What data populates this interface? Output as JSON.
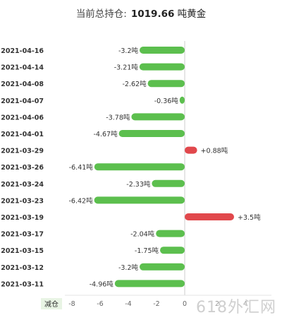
{
  "header": {
    "title_label": "当前总持仓:",
    "title_value": "1019.66",
    "title_unit": "吨黄金"
  },
  "chart_data": {
    "type": "bar",
    "orientation": "horizontal",
    "categories": [
      "2021-04-16",
      "2021-04-14",
      "2021-04-08",
      "2021-04-07",
      "2021-04-06",
      "2021-04-01",
      "2021-03-29",
      "2021-03-26",
      "2021-03-24",
      "2021-03-23",
      "2021-03-19",
      "2021-03-17",
      "2021-03-15",
      "2021-03-12",
      "2021-03-11"
    ],
    "values": [
      -3.2,
      -3.21,
      -2.62,
      -0.36,
      -3.78,
      -4.67,
      0.88,
      -6.41,
      -2.33,
      -6.42,
      3.5,
      -2.04,
      -1.75,
      -3.2,
      -4.96
    ],
    "value_labels": [
      "-3.2吨",
      "-3.21吨",
      "-2.62吨",
      "-0.36吨",
      "-3.78吨",
      "-4.67吨",
      "+0.88吨",
      "-6.41吨",
      "-2.33吨",
      "-6.42吨",
      "+3.5吨",
      "-2.04吨",
      "-1.75吨",
      "-3.2吨",
      "-4.96吨"
    ],
    "xlim": [
      -8,
      4
    ],
    "x_ticks": [
      -8,
      -6,
      -4,
      -2,
      0
    ],
    "right_tick_labels": [
      "2",
      "4"
    ],
    "legend_label": "减仓",
    "colors": {
      "negative": "#5cbf4e",
      "positive": "#e1484c",
      "axis": "#cccccc",
      "text": "#333333"
    }
  },
  "watermark": "618外汇网"
}
